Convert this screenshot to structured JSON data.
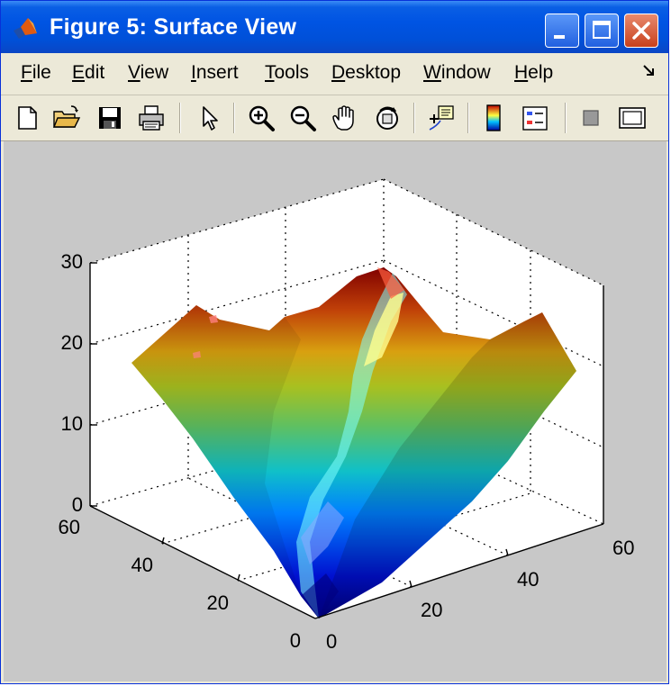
{
  "window": {
    "title": "Figure 5: Surface View"
  },
  "menu": [
    "File",
    "Edit",
    "View",
    "Insert",
    "Tools",
    "Desktop",
    "Window",
    "Help"
  ],
  "toolbar_icons": [
    "new-file-icon",
    "open-folder-icon",
    "save-icon",
    "print-icon",
    "arrow-select-icon",
    "zoom-in-icon",
    "zoom-out-icon",
    "pan-hand-icon",
    "rotate-3d-icon",
    "data-cursor-icon",
    "colorbar-icon",
    "legend-icon",
    "hide-plot-tools-icon",
    "show-plot-tools-icon"
  ],
  "colors": {
    "titlebar": "#0054e3",
    "canvas": "#c8c8c8",
    "close_button": "#c8401c"
  },
  "chart_data": {
    "type": "surface",
    "title": "",
    "z_ticks": [
      "0",
      "10",
      "20",
      "30"
    ],
    "y_ticks": [
      "0",
      "20",
      "40",
      "60"
    ],
    "x_ticks": [
      "0",
      "20",
      "40",
      "60"
    ],
    "zlim": [
      0,
      30
    ],
    "xlim": [
      0,
      60
    ],
    "ylim": [
      0,
      60
    ],
    "grid": true,
    "colormap": "jet"
  }
}
